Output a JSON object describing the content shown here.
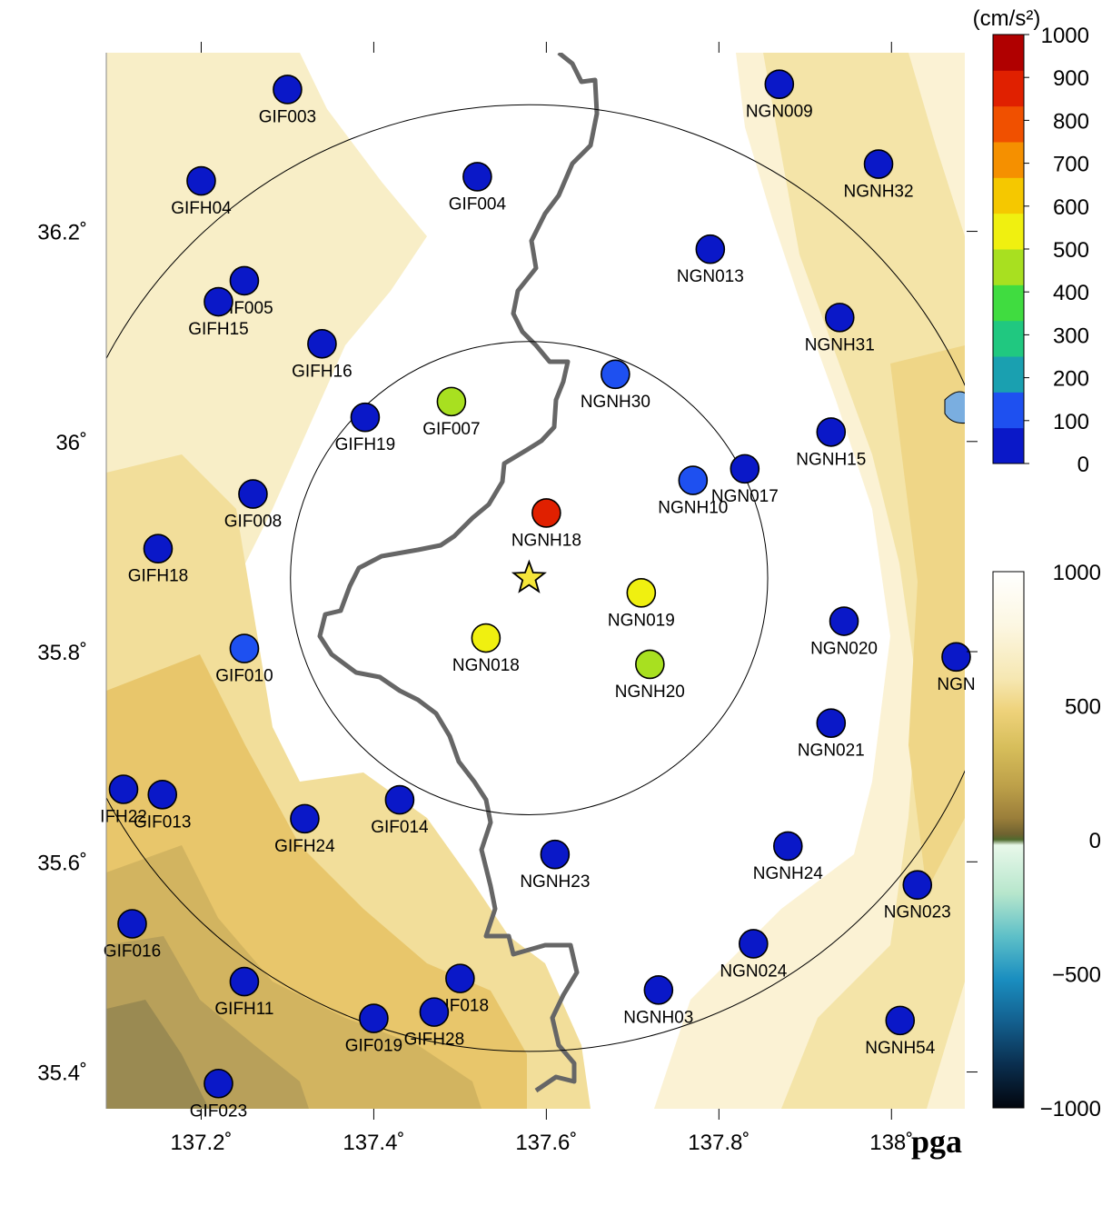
{
  "map": {
    "lon_range": [
      137.09,
      138.085
    ],
    "lat_range": [
      35.365,
      36.37
    ],
    "x_ticks": [
      137.2,
      137.4,
      137.6,
      137.8,
      138.0
    ],
    "x_tick_labels": [
      "137.2˚",
      "137.4˚",
      "137.6˚",
      "137.8˚",
      "138˚"
    ],
    "y_ticks": [
      35.4,
      35.6,
      35.8,
      36.0,
      36.2
    ],
    "y_tick_labels": [
      "35.4˚",
      "35.6˚",
      "35.8˚",
      "36˚",
      "36.2˚"
    ],
    "corner_label": "pga",
    "epicenter": {
      "lon": 137.58,
      "lat": 35.87,
      "color": "#f5e63a"
    },
    "circles": [
      {
        "center_lon": 137.58,
        "center_lat": 35.87,
        "radius_km": 25
      },
      {
        "center_lon": 137.58,
        "center_lat": 35.87,
        "radius_km": 50
      }
    ],
    "stations": [
      {
        "name": "GIF003",
        "lon": 137.3,
        "lat": 36.335,
        "pga": 20
      },
      {
        "name": "NGN009",
        "lon": 137.87,
        "lat": 36.34,
        "pga": 20
      },
      {
        "name": "GIFH04",
        "lon": 137.2,
        "lat": 36.248,
        "pga": 20
      },
      {
        "name": "GIF004",
        "lon": 137.52,
        "lat": 36.252,
        "pga": 20
      },
      {
        "name": "NGNH32",
        "lon": 137.985,
        "lat": 36.264,
        "pga": 20
      },
      {
        "name": "NGN013",
        "lon": 137.79,
        "lat": 36.183,
        "pga": 20
      },
      {
        "name": "GIF005",
        "lon": 137.25,
        "lat": 36.153,
        "pga": 20
      },
      {
        "name": "GIFH15",
        "lon": 137.22,
        "lat": 36.133,
        "pga": 20
      },
      {
        "name": "NGNH31",
        "lon": 137.94,
        "lat": 36.118,
        "pga": 20
      },
      {
        "name": "GIFH16",
        "lon": 137.34,
        "lat": 36.093,
        "pga": 20
      },
      {
        "name": "NGNH30",
        "lon": 137.68,
        "lat": 36.064,
        "pga": 90
      },
      {
        "name": "GIF007",
        "lon": 137.49,
        "lat": 36.038,
        "pga": 420
      },
      {
        "name": "GIFH19",
        "lon": 137.39,
        "lat": 36.023,
        "pga": 20
      },
      {
        "name": "NGNH15",
        "lon": 137.93,
        "lat": 36.009,
        "pga": 20
      },
      {
        "name": "NGN017",
        "lon": 137.83,
        "lat": 35.974,
        "pga": 70
      },
      {
        "name": "NGNH10",
        "lon": 137.77,
        "lat": 35.963,
        "pga": 90
      },
      {
        "name": "GIF008",
        "lon": 137.26,
        "lat": 35.95,
        "pga": 40
      },
      {
        "name": "NGNH18",
        "lon": 137.6,
        "lat": 35.932,
        "pga": 850
      },
      {
        "name": "GIFH18",
        "lon": 137.15,
        "lat": 35.898,
        "pga": 20
      },
      {
        "name": "NGN019",
        "lon": 137.71,
        "lat": 35.856,
        "pga": 520
      },
      {
        "name": "NGN020",
        "lon": 137.945,
        "lat": 35.829,
        "pga": 20
      },
      {
        "name": "NGN018",
        "lon": 137.53,
        "lat": 35.813,
        "pga": 520
      },
      {
        "name": "GIF010",
        "lon": 137.25,
        "lat": 35.803,
        "pga": 90
      },
      {
        "name": "NGN",
        "lon": 138.075,
        "lat": 35.795,
        "pga": 20
      },
      {
        "name": "NGNH20",
        "lon": 137.72,
        "lat": 35.788,
        "pga": 420
      },
      {
        "name": "NGN021",
        "lon": 137.93,
        "lat": 35.732,
        "pga": 20
      },
      {
        "name": "IFH22",
        "lon": 137.11,
        "lat": 35.669,
        "pga": 20
      },
      {
        "name": "GIF013",
        "lon": 137.155,
        "lat": 35.664,
        "pga": 20
      },
      {
        "name": "GIF014",
        "lon": 137.43,
        "lat": 35.659,
        "pga": 20
      },
      {
        "name": "GIFH24",
        "lon": 137.32,
        "lat": 35.641,
        "pga": 40
      },
      {
        "name": "NGNH24",
        "lon": 137.88,
        "lat": 35.615,
        "pga": 20
      },
      {
        "name": "NGNH23",
        "lon": 137.61,
        "lat": 35.607,
        "pga": 70
      },
      {
        "name": "NGN023",
        "lon": 138.03,
        "lat": 35.578,
        "pga": 20
      },
      {
        "name": "GIF016",
        "lon": 137.12,
        "lat": 35.541,
        "pga": 20
      },
      {
        "name": "NGN024",
        "lon": 137.84,
        "lat": 35.522,
        "pga": 40
      },
      {
        "name": "GIF018",
        "lon": 137.5,
        "lat": 35.489,
        "pga": 20
      },
      {
        "name": "GIFH11",
        "lon": 137.25,
        "lat": 35.486,
        "pga": 40
      },
      {
        "name": "NGNH03",
        "lon": 137.73,
        "lat": 35.478,
        "pga": 40
      },
      {
        "name": "GIFH28",
        "lon": 137.47,
        "lat": 35.457,
        "pga": 40
      },
      {
        "name": "GIF019",
        "lon": 137.4,
        "lat": 35.451,
        "pga": 20
      },
      {
        "name": "NGNH54",
        "lon": 138.01,
        "lat": 35.449,
        "pga": 20
      },
      {
        "name": "GIF023",
        "lon": 137.22,
        "lat": 35.389,
        "pga": 20
      }
    ]
  },
  "pga_colorbar": {
    "unit_label": "(cm/s²)",
    "tick_labels": [
      "1000",
      "900",
      "800",
      "700",
      "600",
      "500",
      "400",
      "300",
      "200",
      "100",
      "0"
    ],
    "colors": [
      "#0a18c8",
      "#1e50f0",
      "#1aa0b0",
      "#20c880",
      "#40dc40",
      "#a8e020",
      "#f0f010",
      "#f5c800",
      "#f59000",
      "#f05000",
      "#e02000",
      "#b00000"
    ]
  },
  "topo_colorbar": {
    "tick_labels": [
      "1000",
      "500",
      "0",
      "−500",
      "−1000"
    ]
  }
}
